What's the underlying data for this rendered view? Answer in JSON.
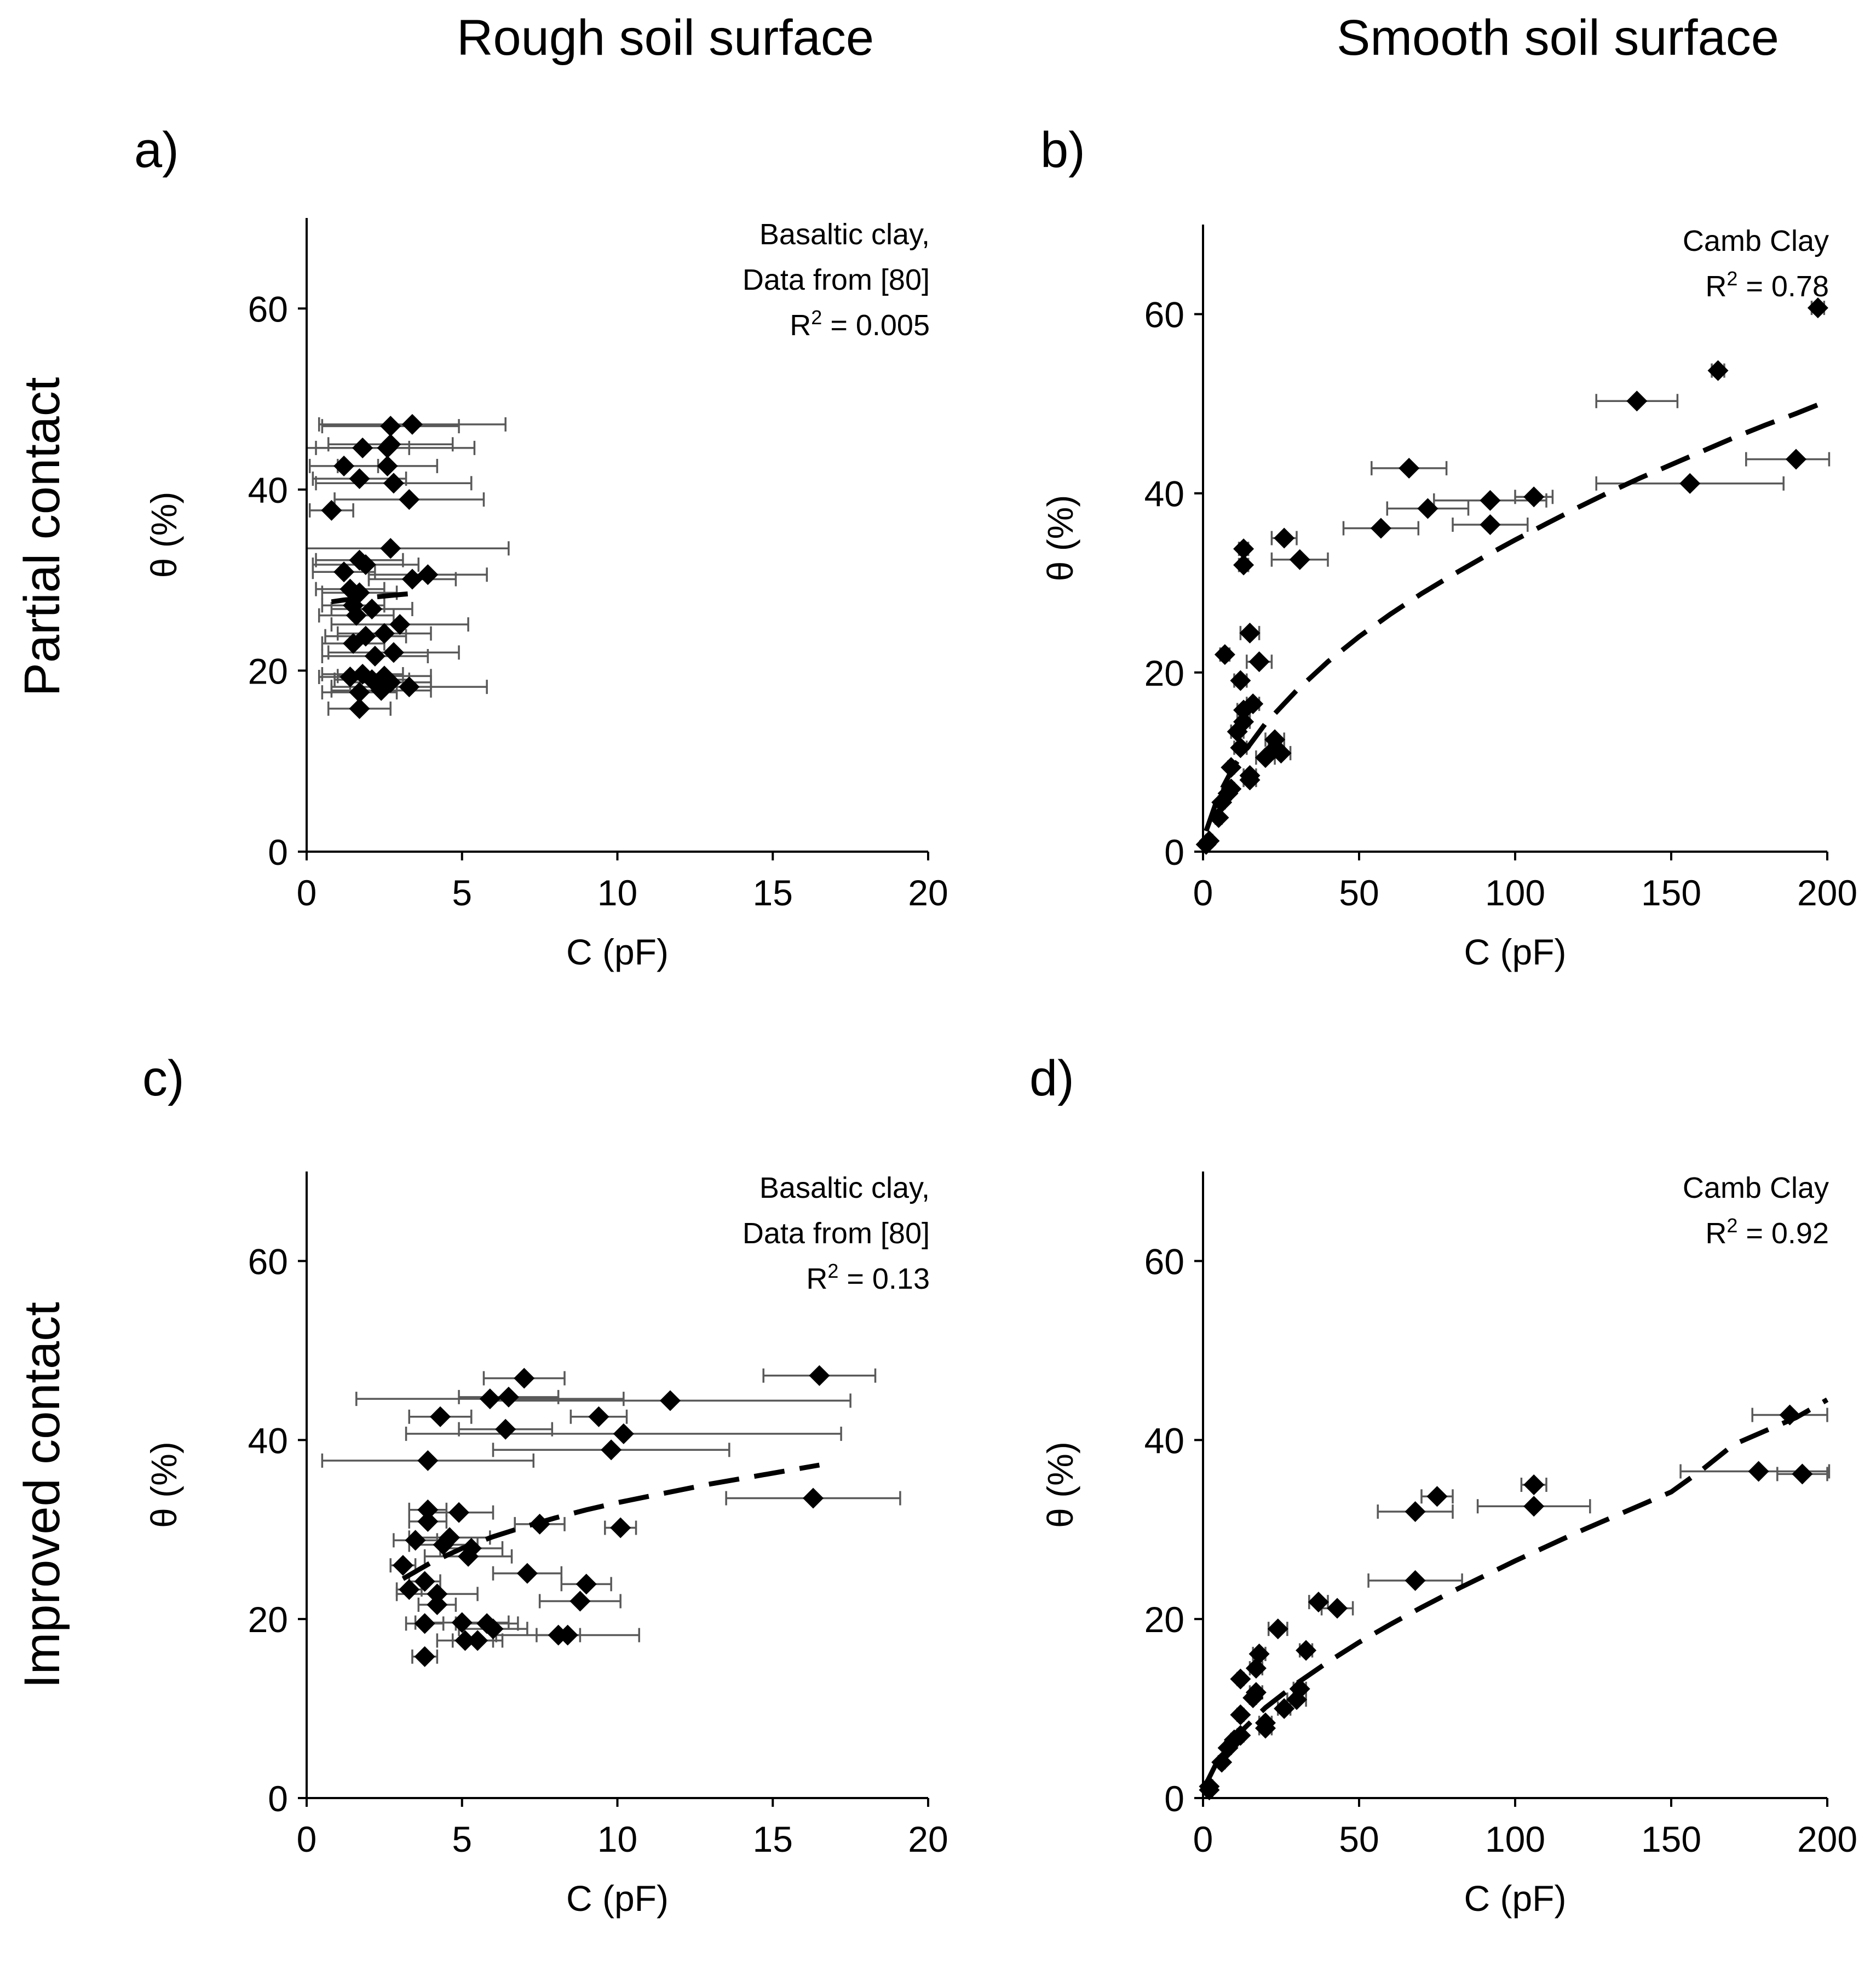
{
  "figure": {
    "column_titles": [
      "Rough soil surface",
      "Smooth soil surface"
    ],
    "row_titles": [
      "Partial contact",
      "Improved contact"
    ]
  },
  "colors": {
    "marker": "#000000",
    "error_bar": "#595959",
    "trend": "#000000",
    "background": "#ffffff"
  },
  "chart_data": [
    {
      "id": "a",
      "panel_label": "a)",
      "type": "scatter",
      "surface": "Rough soil surface",
      "contact": "Partial contact",
      "xlabel": "C (pF)",
      "ylabel": "θ (%)",
      "xlim": [
        0,
        20
      ],
      "ylim": [
        0,
        70
      ],
      "xticks": [
        0,
        5,
        10,
        15,
        20
      ],
      "yticks": [
        0,
        20,
        40,
        60
      ],
      "annotation": [
        "Basaltic clay,",
        "Data from [80]"
      ],
      "r2": {
        "prefix": "R",
        "sup": "2",
        "suffix": " = 0.005"
      },
      "marker": "diamond",
      "points": [
        {
          "x": 2.7,
          "y": 47.0,
          "xerr": 2.2
        },
        {
          "x": 3.4,
          "y": 47.2,
          "xerr": 3.0
        },
        {
          "x": 1.8,
          "y": 44.6,
          "xerr": 1.5
        },
        {
          "x": 2.6,
          "y": 44.6,
          "xerr": 2.8
        },
        {
          "x": 2.7,
          "y": 45.0,
          "xerr": 2.0
        },
        {
          "x": 1.2,
          "y": 42.6,
          "xerr": 1.1
        },
        {
          "x": 2.6,
          "y": 42.6,
          "xerr": 1.6
        },
        {
          "x": 1.7,
          "y": 41.2,
          "xerr": 1.5
        },
        {
          "x": 2.8,
          "y": 40.7,
          "xerr": 2.5
        },
        {
          "x": 3.3,
          "y": 38.9,
          "xerr": 2.4
        },
        {
          "x": 0.8,
          "y": 37.7,
          "xerr": 0.7
        },
        {
          "x": 2.7,
          "y": 33.5,
          "xerr": 3.8
        },
        {
          "x": 1.7,
          "y": 32.2,
          "xerr": 1.4
        },
        {
          "x": 1.9,
          "y": 31.7,
          "xerr": 1.7
        },
        {
          "x": 1.2,
          "y": 30.9,
          "xerr": 1.0
        },
        {
          "x": 3.9,
          "y": 30.6,
          "xerr": 1.9
        },
        {
          "x": 3.4,
          "y": 30.1,
          "xerr": 1.4
        },
        {
          "x": 1.4,
          "y": 29.0,
          "xerr": 1.1
        },
        {
          "x": 1.7,
          "y": 28.6,
          "xerr": 1.2
        },
        {
          "x": 1.5,
          "y": 27.2,
          "xerr": 1.0
        },
        {
          "x": 2.1,
          "y": 26.8,
          "xerr": 1.3
        },
        {
          "x": 1.6,
          "y": 26.1,
          "xerr": 1.2
        },
        {
          "x": 3.0,
          "y": 25.1,
          "xerr": 2.2
        },
        {
          "x": 2.5,
          "y": 24.1,
          "xerr": 1.5
        },
        {
          "x": 1.9,
          "y": 23.8,
          "xerr": 1.3
        },
        {
          "x": 1.5,
          "y": 23.0,
          "xerr": 1.0
        },
        {
          "x": 2.8,
          "y": 22.0,
          "xerr": 2.1
        },
        {
          "x": 2.2,
          "y": 21.6,
          "xerr": 1.7
        },
        {
          "x": 1.8,
          "y": 19.6,
          "xerr": 1.3
        },
        {
          "x": 1.4,
          "y": 19.3,
          "xerr": 1.0
        },
        {
          "x": 2.5,
          "y": 19.4,
          "xerr": 1.5
        },
        {
          "x": 2.1,
          "y": 19.0,
          "xerr": 1.2
        },
        {
          "x": 2.7,
          "y": 18.7,
          "xerr": 1.3
        },
        {
          "x": 3.3,
          "y": 18.2,
          "xerr": 2.5
        },
        {
          "x": 2.4,
          "y": 17.8,
          "xerr": 1.6
        },
        {
          "x": 1.7,
          "y": 17.6,
          "xerr": 1.2
        },
        {
          "x": 1.7,
          "y": 15.8,
          "xerr": 1.0
        }
      ],
      "trendline": {
        "x": [
          0.8,
          1.2,
          1.8,
          2.4,
          3.0,
          3.7
        ],
        "y": [
          27.6,
          27.8,
          28.0,
          28.2,
          28.4,
          28.6
        ]
      }
    },
    {
      "id": "b",
      "panel_label": "b)",
      "type": "scatter",
      "surface": "Smooth soil surface",
      "contact": "Partial contact",
      "xlabel": "C (pF)",
      "ylabel": "θ (%)",
      "xlim": [
        0,
        200
      ],
      "ylim": [
        0,
        70
      ],
      "xticks": [
        0,
        50,
        100,
        150,
        200
      ],
      "yticks": [
        0,
        20,
        40,
        60
      ],
      "annotation": [
        "Camb Clay"
      ],
      "r2": {
        "prefix": "R",
        "sup": "2",
        "suffix": " = 0.78"
      },
      "marker": "diamond",
      "points": [
        {
          "x": 197,
          "y": 60.7,
          "xerr": 2
        },
        {
          "x": 165,
          "y": 53.7,
          "xerr": 2
        },
        {
          "x": 139,
          "y": 50.3,
          "xerr": 13
        },
        {
          "x": 190,
          "y": 43.8,
          "xerr": 16
        },
        {
          "x": 66,
          "y": 42.8,
          "xerr": 12
        },
        {
          "x": 156,
          "y": 41.1,
          "xerr": 30
        },
        {
          "x": 106,
          "y": 39.6,
          "xerr": 6
        },
        {
          "x": 92,
          "y": 39.2,
          "xerr": 18
        },
        {
          "x": 72,
          "y": 38.3,
          "xerr": 13
        },
        {
          "x": 92,
          "y": 36.5,
          "xerr": 12
        },
        {
          "x": 57,
          "y": 36.1,
          "xerr": 12
        },
        {
          "x": 26,
          "y": 35.0,
          "xerr": 4
        },
        {
          "x": 13,
          "y": 33.8,
          "xerr": 1.5
        },
        {
          "x": 31,
          "y": 32.6,
          "xerr": 9
        },
        {
          "x": 13,
          "y": 32.0,
          "xerr": 1.5
        },
        {
          "x": 15,
          "y": 24.4,
          "xerr": 3
        },
        {
          "x": 7,
          "y": 22.0,
          "xerr": 1.5
        },
        {
          "x": 18,
          "y": 21.2,
          "xerr": 4
        },
        {
          "x": 12,
          "y": 19.1,
          "xerr": 2
        },
        {
          "x": 16,
          "y": 16.5,
          "xerr": 2
        },
        {
          "x": 13,
          "y": 15.8,
          "xerr": 2
        },
        {
          "x": 13,
          "y": 14.5,
          "xerr": 2
        },
        {
          "x": 11,
          "y": 13.4,
          "xerr": 2
        },
        {
          "x": 23,
          "y": 12.5,
          "xerr": 3
        },
        {
          "x": 23,
          "y": 11.5,
          "xerr": 2
        },
        {
          "x": 25,
          "y": 11.0,
          "xerr": 3
        },
        {
          "x": 12,
          "y": 11.6,
          "xerr": 2
        },
        {
          "x": 20,
          "y": 10.5,
          "xerr": 3
        },
        {
          "x": 9,
          "y": 9.4,
          "xerr": 1
        },
        {
          "x": 15,
          "y": 8.5,
          "xerr": 2
        },
        {
          "x": 15,
          "y": 8.0,
          "xerr": 2
        },
        {
          "x": 9,
          "y": 7.0,
          "xerr": 1
        },
        {
          "x": 8,
          "y": 6.5,
          "xerr": 1
        },
        {
          "x": 6,
          "y": 5.5,
          "xerr": 1
        },
        {
          "x": 5,
          "y": 3.8,
          "xerr": 1
        },
        {
          "x": 2,
          "y": 1.2,
          "xerr": 1
        },
        {
          "x": 1,
          "y": 0.8,
          "xerr": 1
        }
      ],
      "trendline": {
        "x": [
          1,
          5,
          10,
          20,
          30,
          40,
          50,
          60,
          70,
          80,
          90,
          100,
          110,
          120,
          130,
          140,
          150,
          160,
          170,
          180,
          190,
          200
        ],
        "y": [
          2.3,
          6.3,
          9.6,
          14.3,
          18.0,
          21.2,
          24.0,
          26.5,
          28.8,
          30.9,
          32.9,
          34.8,
          36.6,
          38.4,
          40.1,
          41.7,
          43.2,
          44.7,
          46.2,
          47.6,
          48.9,
          50.3
        ]
      }
    },
    {
      "id": "c",
      "panel_label": "c)",
      "type": "scatter",
      "surface": "Rough soil surface",
      "contact": "Improved contact",
      "xlabel": "C (pF)",
      "ylabel": "θ (%)",
      "xlim": [
        0,
        20
      ],
      "ylim": [
        0,
        70
      ],
      "xticks": [
        0,
        5,
        10,
        15,
        20
      ],
      "yticks": [
        0,
        20,
        40,
        60
      ],
      "annotation": [
        "Basaltic clay,",
        "Data from [80]"
      ],
      "r2": {
        "prefix": "R",
        "sup": "2",
        "suffix": " = 0.13"
      },
      "marker": "diamond",
      "points": [
        {
          "x": 16.5,
          "y": 47.2,
          "xerr": 1.8
        },
        {
          "x": 7.0,
          "y": 46.9,
          "xerr": 1.3
        },
        {
          "x": 5.9,
          "y": 44.6,
          "xerr": 4.3
        },
        {
          "x": 6.5,
          "y": 44.8,
          "xerr": 1.6
        },
        {
          "x": 11.7,
          "y": 44.4,
          "xerr": 5.8
        },
        {
          "x": 4.3,
          "y": 42.6,
          "xerr": 1.0
        },
        {
          "x": 9.4,
          "y": 42.6,
          "xerr": 0.9
        },
        {
          "x": 6.4,
          "y": 41.2,
          "xerr": 1.5
        },
        {
          "x": 10.2,
          "y": 40.7,
          "xerr": 7.0
        },
        {
          "x": 9.8,
          "y": 38.9,
          "xerr": 3.8
        },
        {
          "x": 3.9,
          "y": 37.7,
          "xerr": 3.4
        },
        {
          "x": 16.3,
          "y": 33.5,
          "xerr": 2.8
        },
        {
          "x": 3.9,
          "y": 32.2,
          "xerr": 0.6
        },
        {
          "x": 4.9,
          "y": 31.9,
          "xerr": 1.1
        },
        {
          "x": 3.9,
          "y": 30.9,
          "xerr": 0.6
        },
        {
          "x": 7.5,
          "y": 30.6,
          "xerr": 0.8
        },
        {
          "x": 10.1,
          "y": 30.2,
          "xerr": 0.5
        },
        {
          "x": 4.6,
          "y": 29.1,
          "xerr": 1.3
        },
        {
          "x": 3.5,
          "y": 28.8,
          "xerr": 0.7
        },
        {
          "x": 4.4,
          "y": 28.3,
          "xerr": 1.1
        },
        {
          "x": 5.3,
          "y": 27.9,
          "xerr": 1.0
        },
        {
          "x": 5.2,
          "y": 27.0,
          "xerr": 1.4
        },
        {
          "x": 3.1,
          "y": 26.0,
          "xerr": 0.4
        },
        {
          "x": 7.1,
          "y": 25.1,
          "xerr": 1.1
        },
        {
          "x": 3.8,
          "y": 24.2,
          "xerr": 0.5
        },
        {
          "x": 9.0,
          "y": 23.9,
          "xerr": 0.8
        },
        {
          "x": 3.3,
          "y": 23.3,
          "xerr": 0.4
        },
        {
          "x": 4.2,
          "y": 22.8,
          "xerr": 1.3
        },
        {
          "x": 8.8,
          "y": 22.0,
          "xerr": 1.3
        },
        {
          "x": 4.2,
          "y": 21.6,
          "xerr": 0.6
        },
        {
          "x": 3.8,
          "y": 19.5,
          "xerr": 0.6
        },
        {
          "x": 5.0,
          "y": 19.6,
          "xerr": 1.5
        },
        {
          "x": 5.8,
          "y": 19.5,
          "xerr": 1.0
        },
        {
          "x": 6.0,
          "y": 18.9,
          "xerr": 1.1
        },
        {
          "x": 8.1,
          "y": 18.2,
          "xerr": 0.7
        },
        {
          "x": 8.4,
          "y": 18.2,
          "xerr": 2.3
        },
        {
          "x": 5.1,
          "y": 17.6,
          "xerr": 0.9
        },
        {
          "x": 5.5,
          "y": 17.6,
          "xerr": 0.8
        },
        {
          "x": 3.8,
          "y": 15.8,
          "xerr": 0.4
        }
      ],
      "trendline": {
        "x": [
          3.1,
          4,
          5,
          6,
          7,
          8,
          9,
          10,
          11,
          12,
          13,
          14,
          15,
          16,
          16.5
        ],
        "y": [
          24.5,
          26.3,
          27.9,
          29.2,
          30.3,
          31.3,
          32.2,
          33.0,
          33.7,
          34.4,
          35.1,
          35.7,
          36.3,
          36.9,
          37.2
        ]
      }
    },
    {
      "id": "d",
      "panel_label": "d)",
      "type": "scatter",
      "surface": "Smooth soil surface",
      "contact": "Improved contact",
      "xlabel": "C (pF)",
      "ylabel": "θ (%)",
      "xlim": [
        0,
        200
      ],
      "ylim": [
        0,
        70
      ],
      "xticks": [
        0,
        50,
        100,
        150,
        200
      ],
      "yticks": [
        0,
        20,
        40,
        60
      ],
      "annotation": [
        "Camb Clay"
      ],
      "r2": {
        "prefix": "R",
        "sup": "2",
        "suffix": " = 0.92"
      },
      "marker": "diamond",
      "points": [
        {
          "x": 188,
          "y": 42.8,
          "xerr": 12
        },
        {
          "x": 178,
          "y": 36.5,
          "xerr": 25
        },
        {
          "x": 192,
          "y": 36.2,
          "xerr": 8
        },
        {
          "x": 106,
          "y": 35.0,
          "xerr": 4
        },
        {
          "x": 75,
          "y": 33.7,
          "xerr": 5
        },
        {
          "x": 106,
          "y": 32.6,
          "xerr": 18
        },
        {
          "x": 68,
          "y": 32.0,
          "xerr": 12
        },
        {
          "x": 68,
          "y": 24.3,
          "xerr": 15
        },
        {
          "x": 37,
          "y": 21.9,
          "xerr": 3
        },
        {
          "x": 43,
          "y": 21.2,
          "xerr": 5
        },
        {
          "x": 24,
          "y": 18.9,
          "xerr": 3
        },
        {
          "x": 33,
          "y": 16.5,
          "xerr": 2
        },
        {
          "x": 18,
          "y": 16.1,
          "xerr": 2
        },
        {
          "x": 17,
          "y": 14.5,
          "xerr": 2
        },
        {
          "x": 12,
          "y": 13.3,
          "xerr": 1
        },
        {
          "x": 17,
          "y": 11.8,
          "xerr": 2
        },
        {
          "x": 31,
          "y": 12.2,
          "xerr": 2
        },
        {
          "x": 30,
          "y": 11.0,
          "xerr": 3
        },
        {
          "x": 16,
          "y": 11.2,
          "xerr": 1
        },
        {
          "x": 26,
          "y": 10.0,
          "xerr": 2
        },
        {
          "x": 12,
          "y": 9.3,
          "xerr": 1
        },
        {
          "x": 20,
          "y": 8.4,
          "xerr": 2
        },
        {
          "x": 20,
          "y": 7.8,
          "xerr": 2
        },
        {
          "x": 12,
          "y": 7.0,
          "xerr": 1
        },
        {
          "x": 10,
          "y": 6.5,
          "xerr": 1
        },
        {
          "x": 8,
          "y": 5.6,
          "xerr": 1
        },
        {
          "x": 6,
          "y": 4.0,
          "xerr": 1
        },
        {
          "x": 2,
          "y": 1.3,
          "xerr": 1
        },
        {
          "x": 2,
          "y": 0.9,
          "xerr": 1
        }
      ],
      "trendline": {
        "x": [
          1,
          5,
          10,
          20,
          30,
          40,
          50,
          60,
          70,
          80,
          90,
          100,
          110,
          120,
          130,
          140,
          150,
          160,
          170,
          180,
          190,
          200
        ],
        "y": [
          1.6,
          4.4,
          6.7,
          10.1,
          12.8,
          15.2,
          17.4,
          19.4,
          21.3,
          23.1,
          24.8,
          26.5,
          28.1,
          29.7,
          31.2,
          32.7,
          34.2,
          36.7,
          39.5,
          41.0,
          42.5,
          44.5
        ]
      }
    }
  ]
}
